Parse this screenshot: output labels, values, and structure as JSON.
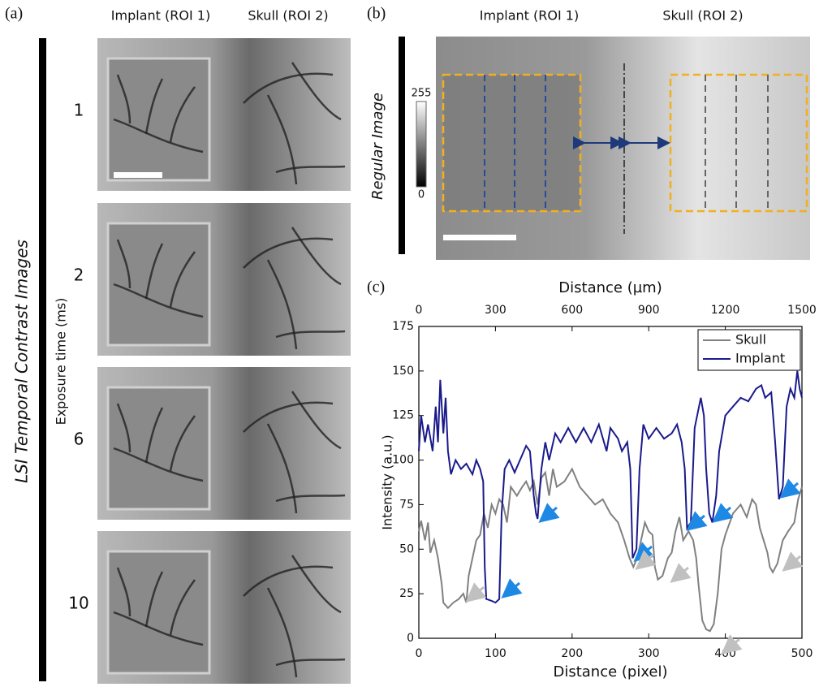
{
  "panel_a": {
    "label": "(a)",
    "roi1": "Implant (ROI 1)",
    "roi2": "Skull (ROI 2)",
    "side_title": "LSI Temporal Contrast Images",
    "exposure_label": "Exposure time (ms)",
    "exposures": [
      "1",
      "2",
      "6",
      "10"
    ]
  },
  "panel_b": {
    "label": "(b)",
    "roi1": "Implant (ROI 1)",
    "roi2": "Skull (ROI 2)",
    "side_title": "Regular Image",
    "colorbar_max": "255",
    "colorbar_min": "0"
  },
  "panel_c": {
    "label": "(c)"
  },
  "chart_data": {
    "type": "line",
    "xlabel": "Distance (pixel)",
    "x2label": "Distance (µm)",
    "ylabel": "Intensity (a.u.)",
    "xlim": [
      0,
      500
    ],
    "xticks": [
      0,
      100,
      200,
      300,
      400,
      500
    ],
    "x2lim": [
      0,
      1500
    ],
    "x2ticks": [
      0,
      300,
      600,
      900,
      1200,
      1500
    ],
    "ylim": [
      0,
      175
    ],
    "yticks": [
      0,
      25,
      50,
      75,
      100,
      125,
      150,
      175
    ],
    "legend": "top-right",
    "series": [
      {
        "name": "Skull",
        "color": "#808080",
        "x": [
          0,
          3,
          8,
          12,
          15,
          20,
          25,
          30,
          32,
          38,
          45,
          52,
          58,
          62,
          65,
          70,
          75,
          80,
          85,
          90,
          95,
          100,
          105,
          110,
          115,
          120,
          128,
          135,
          140,
          145,
          150,
          155,
          160,
          165,
          170,
          175,
          180,
          190,
          200,
          210,
          220,
          230,
          240,
          250,
          260,
          268,
          275,
          280,
          285,
          290,
          295,
          300,
          305,
          308,
          312,
          318,
          325,
          330,
          335,
          340,
          345,
          352,
          358,
          362,
          365,
          370,
          375,
          380,
          385,
          390,
          395,
          400,
          410,
          420,
          428,
          435,
          440,
          445,
          450,
          455,
          458,
          462,
          468,
          475,
          482,
          490,
          495,
          500
        ],
        "values": [
          60,
          66,
          55,
          65,
          48,
          55,
          45,
          30,
          20,
          17,
          20,
          22,
          25,
          20,
          35,
          45,
          55,
          58,
          70,
          62,
          75,
          70,
          78,
          75,
          65,
          85,
          80,
          85,
          88,
          83,
          88,
          75,
          90,
          93,
          80,
          95,
          85,
          88,
          95,
          85,
          80,
          75,
          78,
          70,
          65,
          55,
          45,
          40,
          45,
          55,
          65,
          60,
          58,
          40,
          33,
          35,
          45,
          48,
          60,
          68,
          55,
          60,
          55,
          45,
          30,
          10,
          5,
          4,
          8,
          25,
          50,
          58,
          70,
          75,
          68,
          78,
          75,
          62,
          55,
          48,
          40,
          37,
          42,
          55,
          60,
          65,
          78,
          85
        ]
      },
      {
        "name": "Implant",
        "color": "#1a1a8c",
        "x": [
          0,
          3,
          8,
          12,
          18,
          22,
          25,
          28,
          32,
          35,
          38,
          42,
          48,
          55,
          62,
          70,
          75,
          80,
          84,
          86,
          88,
          95,
          100,
          105,
          108,
          112,
          118,
          125,
          132,
          140,
          145,
          150,
          153,
          155,
          160,
          165,
          170,
          178,
          185,
          195,
          205,
          215,
          225,
          235,
          245,
          250,
          260,
          265,
          272,
          276,
          279,
          284,
          288,
          293,
          300,
          310,
          320,
          330,
          337,
          343,
          347,
          350,
          355,
          360,
          368,
          372,
          375,
          379,
          383,
          388,
          392,
          400,
          410,
          420,
          430,
          440,
          447,
          452,
          460,
          465,
          470,
          475,
          480,
          485,
          490,
          494,
          497,
          500
        ],
        "values": [
          105,
          125,
          110,
          120,
          105,
          130,
          110,
          145,
          115,
          135,
          105,
          92,
          100,
          95,
          98,
          92,
          100,
          95,
          88,
          40,
          22,
          21,
          20,
          22,
          70,
          95,
          100,
          93,
          100,
          108,
          105,
          80,
          70,
          67,
          95,
          110,
          100,
          115,
          110,
          118,
          110,
          118,
          110,
          120,
          105,
          118,
          112,
          105,
          110,
          95,
          45,
          50,
          95,
          120,
          112,
          118,
          112,
          115,
          120,
          110,
          95,
          62,
          65,
          118,
          135,
          125,
          95,
          70,
          65,
          80,
          105,
          125,
          130,
          135,
          133,
          140,
          142,
          135,
          138,
          110,
          78,
          85,
          130,
          140,
          135,
          150,
          140,
          135
        ]
      }
    ]
  }
}
